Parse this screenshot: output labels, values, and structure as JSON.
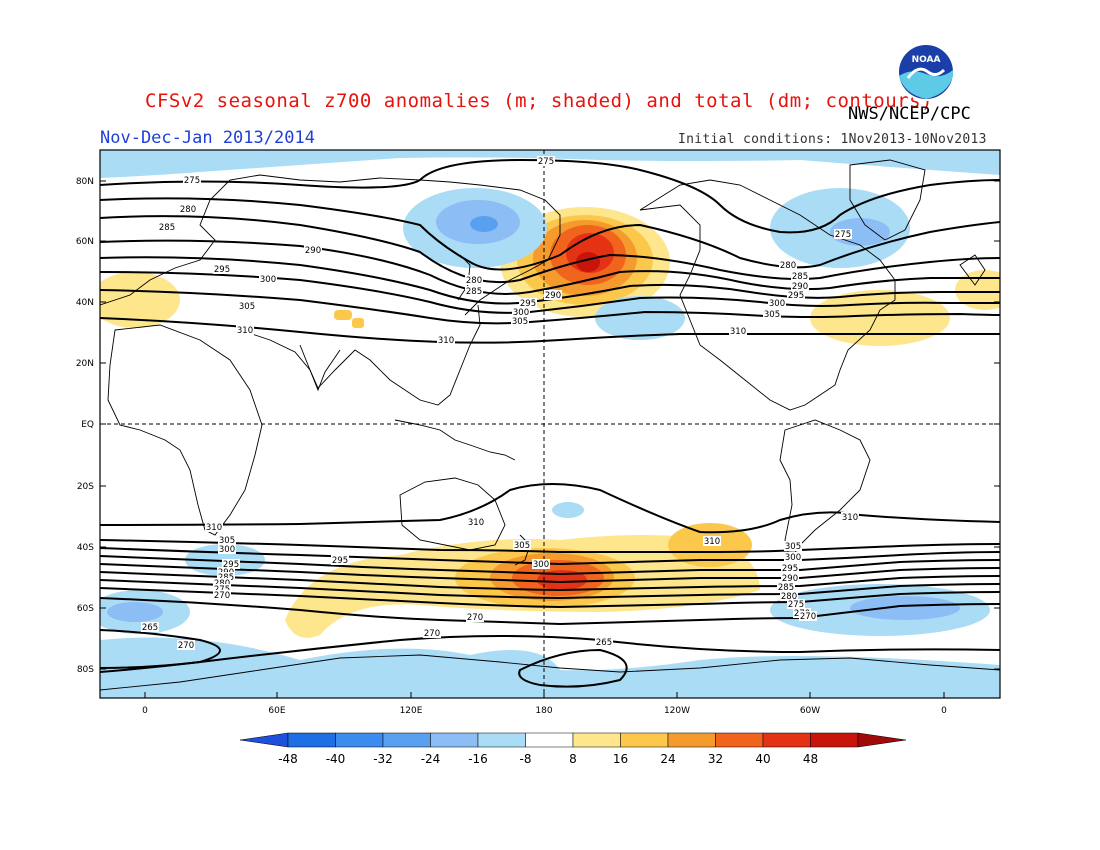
{
  "title": "CFSv2 seasonal z700 anomalies (m; shaded) and total (dm; contours)",
  "organization": "NWS/NCEP/CPC",
  "logo_text": "NOAA",
  "period": "Nov-Dec-Jan 2013/2014",
  "initial_conditions": "Initial conditions: 1Nov2013-10Nov2013",
  "map": {
    "lat_ticks": [
      "80N",
      "60N",
      "40N",
      "20N",
      "EQ",
      "20S",
      "40S",
      "60S",
      "80S"
    ],
    "lon_ticks": [
      "0",
      "60E",
      "120E",
      "180",
      "120W",
      "60W",
      "0"
    ],
    "grid_lines": [
      "EQ",
      "180"
    ]
  },
  "contour_labels": [
    {
      "text": "275",
      "near": "top-center"
    },
    {
      "text": "275",
      "near": "north-atlantic-west"
    },
    {
      "text": "280",
      "near": "north-atlantic-west"
    },
    {
      "text": "285",
      "near": "north-atlantic-west"
    },
    {
      "text": "290",
      "near": "asia-north"
    },
    {
      "text": "295",
      "near": "europe"
    },
    {
      "text": "300",
      "near": "europe"
    },
    {
      "text": "305",
      "near": "europe"
    },
    {
      "text": "310",
      "near": "asia"
    },
    {
      "text": "310",
      "near": "pacific"
    },
    {
      "text": "310",
      "near": "north-america"
    },
    {
      "text": "280",
      "near": "japan"
    },
    {
      "text": "285",
      "near": "japan"
    },
    {
      "text": "290",
      "near": "north-pacific"
    },
    {
      "text": "295",
      "near": "north-pacific"
    },
    {
      "text": "300",
      "near": "north-pacific"
    },
    {
      "text": "305",
      "near": "north-pacific"
    },
    {
      "text": "275",
      "near": "greenland"
    },
    {
      "text": "280",
      "near": "north-atlantic"
    },
    {
      "text": "285",
      "near": "north-atlantic"
    },
    {
      "text": "290",
      "near": "north-atlantic"
    },
    {
      "text": "295",
      "near": "north-atlantic"
    },
    {
      "text": "300",
      "near": "north-atlantic"
    },
    {
      "text": "305",
      "near": "north-atlantic"
    },
    {
      "text": "310",
      "near": "south-indian"
    },
    {
      "text": "305",
      "near": "south-indian"
    },
    {
      "text": "300",
      "near": "south-indian"
    },
    {
      "text": "295",
      "near": "south-indian"
    },
    {
      "text": "290",
      "near": "south-indian"
    },
    {
      "text": "285",
      "near": "south-indian"
    },
    {
      "text": "280",
      "near": "south-indian"
    },
    {
      "text": "275",
      "near": "south-indian"
    },
    {
      "text": "270",
      "near": "south-indian"
    },
    {
      "text": "265",
      "near": "antarctic"
    },
    {
      "text": "270",
      "near": "antarctic"
    },
    {
      "text": "295",
      "near": "south-indian"
    },
    {
      "text": "310",
      "near": "australia"
    },
    {
      "text": "305",
      "near": "new-zealand"
    },
    {
      "text": "300",
      "near": "south-pacific"
    },
    {
      "text": "270",
      "near": "south-pacific"
    },
    {
      "text": "270",
      "near": "antarctic-indian"
    },
    {
      "text": "265",
      "near": "antarctic-pacific"
    },
    {
      "text": "310",
      "near": "south-pacific-east"
    },
    {
      "text": "310",
      "near": "south-america"
    },
    {
      "text": "305",
      "near": "south-atlantic"
    },
    {
      "text": "300",
      "near": "south-atlantic"
    },
    {
      "text": "295",
      "near": "south-atlantic"
    },
    {
      "text": "290",
      "near": "south-atlantic"
    },
    {
      "text": "285",
      "near": "south-atlantic"
    },
    {
      "text": "280",
      "near": "south-atlantic"
    },
    {
      "text": "275",
      "near": "south-atlantic"
    },
    {
      "text": "270",
      "near": "south-atlantic"
    },
    {
      "text": "270",
      "near": "antarctic-east"
    }
  ],
  "colorbar": {
    "labels": [
      "-48",
      "-40",
      "-32",
      "-24",
      "-16",
      "-8",
      "8",
      "16",
      "24",
      "32",
      "40",
      "48"
    ],
    "colors": [
      "#1e6ee6",
      "#3c8cf0",
      "#5aa0f0",
      "#8cbef5",
      "#aadcf5",
      "#ffffff",
      "#fde68c",
      "#fbc84b",
      "#f59b2d",
      "#f0641e",
      "#e63214",
      "#c8140a"
    ],
    "left_arrow_color": "#1e50dc",
    "right_arrow_color": "#a00a0a"
  },
  "anomaly_colors": {
    "neg48": "#1e6ee6",
    "neg32": "#5aa0f0",
    "neg24": "#8cbef5",
    "neg16": "#aadcf5",
    "pos8": "#fde68c",
    "pos16": "#fbc84b",
    "pos24": "#f59b2d",
    "pos32": "#f0641e",
    "pos40": "#e63214",
    "pos48": "#c8140a"
  }
}
